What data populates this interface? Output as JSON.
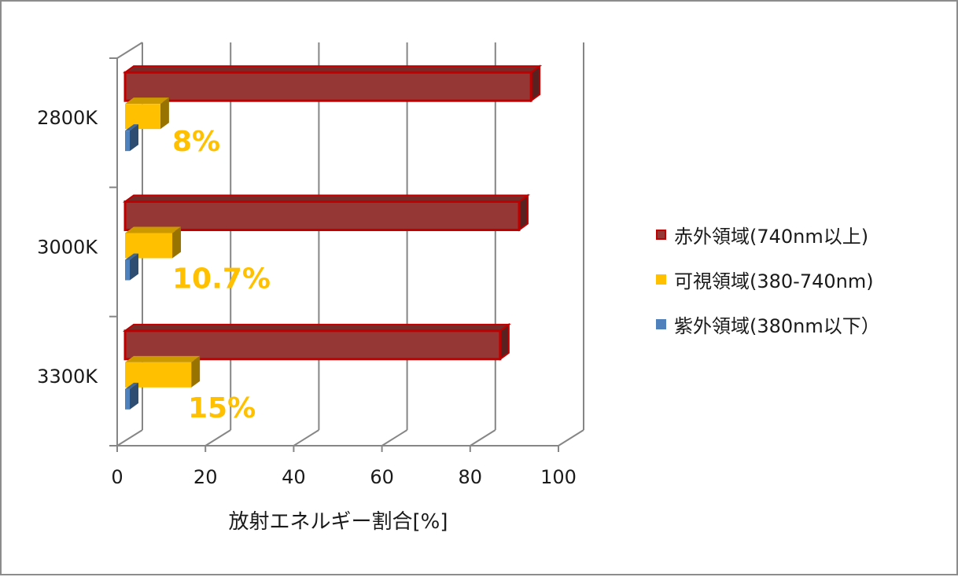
{
  "chart_data": {
    "type": "bar",
    "orientation": "horizontal",
    "style": "3d-clustered",
    "categories": [
      "2800K",
      "3000K",
      "3300K"
    ],
    "series": [
      {
        "name": "赤外領域(740nm以上)",
        "color": "#953735",
        "edge": "#c00000",
        "values": [
          92,
          89.3,
          85
        ]
      },
      {
        "name": "可視領域(380-740nm)",
        "color": "#ffc000",
        "values": [
          8,
          10.7,
          15
        ]
      },
      {
        "name": "紫外領域(380nm以下）",
        "color": "#4f81bd",
        "values": [
          0.1,
          0.1,
          0.1
        ]
      }
    ],
    "data_labels": [
      "8%",
      "10.7%",
      "15%"
    ],
    "xlabel": "放射エネルギー割合[%]",
    "ylabel": "",
    "xlim": [
      0,
      100
    ],
    "xticks": [
      "0",
      "20",
      "40",
      "60",
      "80",
      "100"
    ],
    "grid": true,
    "legend": "right",
    "label_color": "#ffc000"
  }
}
